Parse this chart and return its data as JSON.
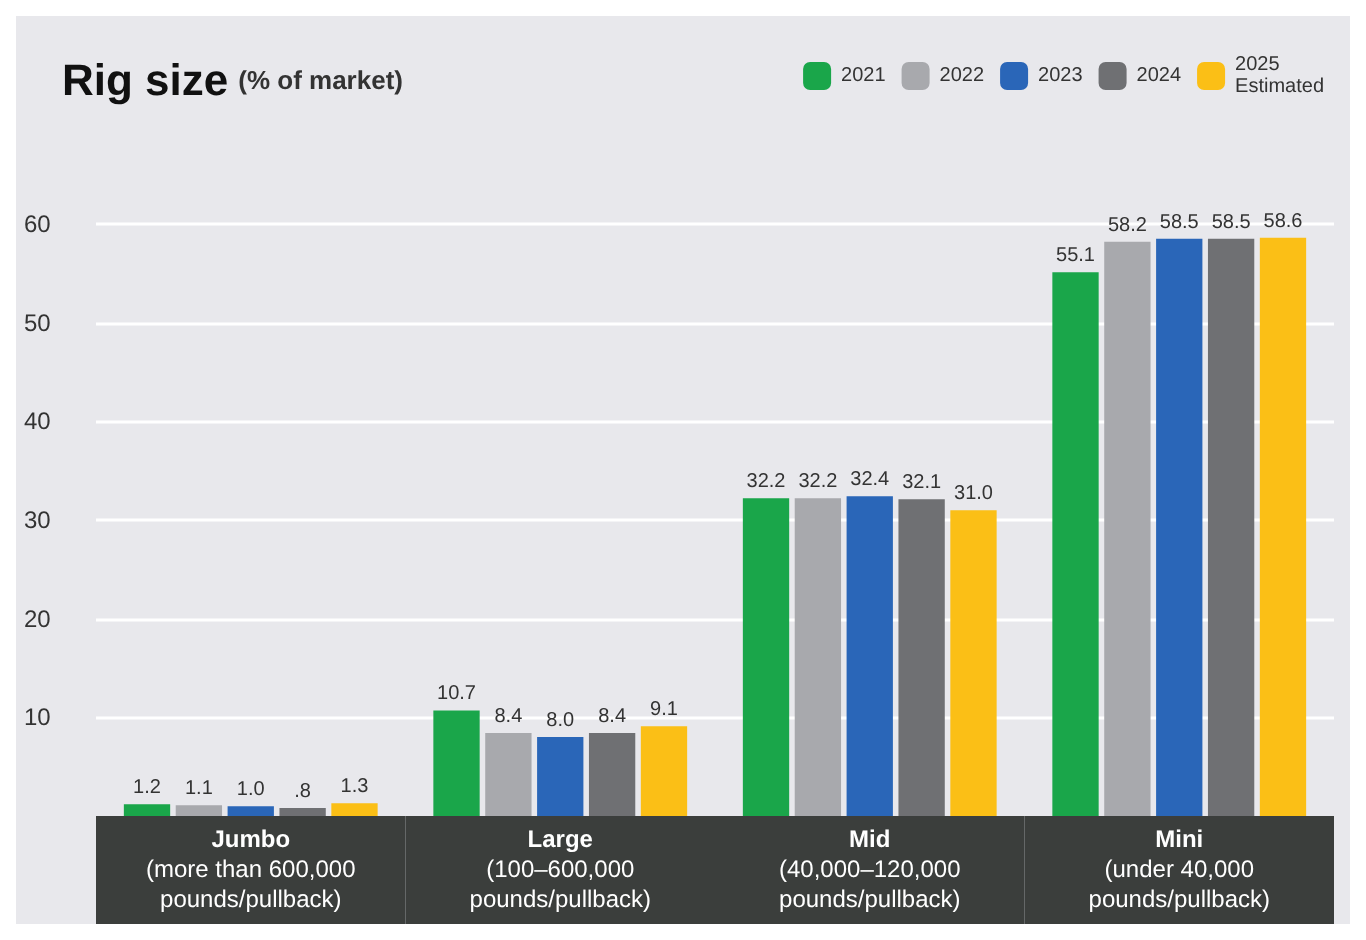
{
  "chart_data": {
    "type": "bar",
    "title": "Rig size",
    "subtitle": "(% of market)",
    "categories": [
      "Jumbo\n(more than 600,000\npounds/pullback)",
      "Large\n(100–600,000\npounds/pullback)",
      "Mid\n(40,000–120,000\npounds/pullback)",
      "Mini\n(under 40,000\npounds/pullback)"
    ],
    "series": [
      {
        "name": "2021",
        "color": "#1aa64a",
        "values": [
          1.2,
          10.7,
          32.2,
          55.1
        ],
        "value_labels": [
          "1.2",
          "10.7",
          "32.2",
          "55.1"
        ]
      },
      {
        "name": "2022",
        "color": "#a8a9ad",
        "values": [
          1.1,
          8.4,
          32.2,
          58.2
        ],
        "value_labels": [
          "1.1",
          "8.4",
          "32.2",
          "58.2"
        ]
      },
      {
        "name": "2023",
        "color": "#2a66b8",
        "values": [
          1.0,
          8.0,
          32.4,
          58.5
        ],
        "value_labels": [
          "1.0",
          "8.0",
          "32.4",
          "58.5"
        ]
      },
      {
        "name": "2024",
        "color": "#6f7073",
        "values": [
          0.8,
          8.4,
          32.1,
          58.5
        ],
        "value_labels": [
          ".8",
          "8.4",
          "32.1",
          "58.5"
        ]
      },
      {
        "name": "2025\nEstimated",
        "color": "#fbbf16",
        "values": [
          1.3,
          9.1,
          31.0,
          58.6
        ],
        "value_labels": [
          "1.3",
          "9.1",
          "31.0",
          "58.6"
        ]
      }
    ],
    "ylim": [
      0,
      60
    ],
    "yticks": [
      10,
      20,
      30,
      40,
      50,
      60
    ],
    "grid": "y",
    "legend": "top right"
  }
}
